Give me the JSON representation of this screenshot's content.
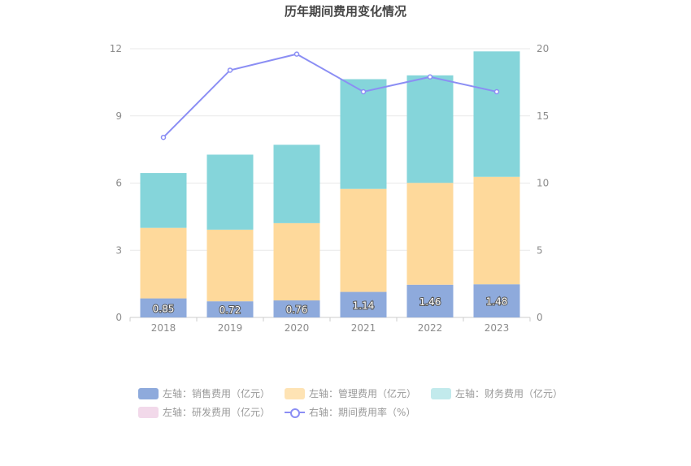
{
  "chart_data": {
    "type": "bar",
    "title": "历年期间费用变化情况",
    "categories": [
      "2018",
      "2019",
      "2020",
      "2021",
      "2022",
      "2023"
    ],
    "y_left": {
      "min": 0,
      "max": 12,
      "ticks": [
        "0",
        "3",
        "6",
        "9",
        "12"
      ]
    },
    "y_right": {
      "min": 0,
      "max": 20,
      "ticks": [
        "0",
        "5",
        "10",
        "15",
        "20"
      ]
    },
    "series": [
      {
        "name": "左轴：销售费用（亿元）",
        "type": "bar",
        "stack": "left",
        "color": "#8eaadc",
        "values": [
          0.85,
          0.72,
          0.76,
          1.14,
          1.46,
          1.48
        ],
        "labels": [
          "0.85",
          "0.72",
          "0.76",
          "1.14",
          "1.46",
          "1.48"
        ]
      },
      {
        "name": "左轴：管理费用（亿元）",
        "type": "bar",
        "stack": "left",
        "color": "#fed99b",
        "values": [
          3.15,
          3.2,
          3.45,
          4.6,
          4.55,
          4.8
        ]
      },
      {
        "name": "左轴：财务费用（亿元）",
        "type": "bar",
        "stack": "left",
        "color": "#85d5da",
        "values": [
          2.45,
          3.35,
          3.5,
          4.9,
          4.8,
          5.6
        ]
      },
      {
        "name": "左轴：研发费用（亿元）",
        "type": "bar",
        "stack": "left",
        "color": "#f2d9ea",
        "values": [
          0,
          0,
          0,
          0,
          0,
          0
        ]
      },
      {
        "name": "右轴：期间费用率（%）",
        "type": "line",
        "axis": "right",
        "color": "#8b8ef4",
        "values": [
          13.4,
          18.4,
          19.6,
          16.8,
          17.9,
          16.8
        ]
      }
    ],
    "grid": true,
    "legend_position": "bottom"
  }
}
